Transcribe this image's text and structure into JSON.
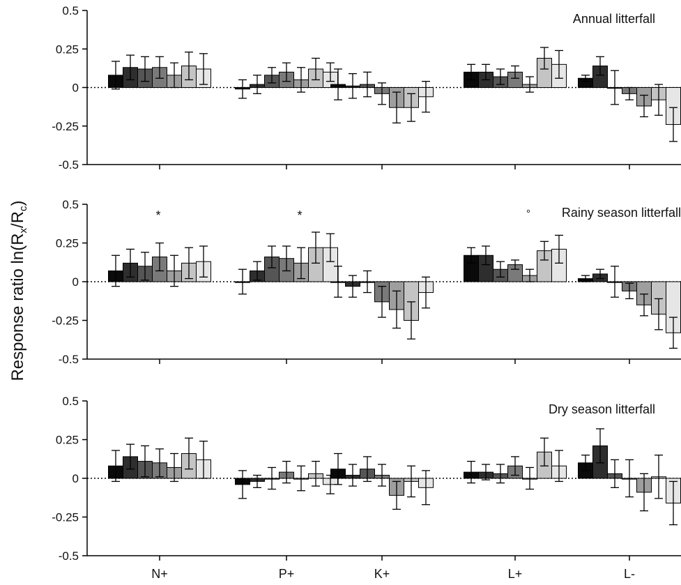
{
  "figure": {
    "ylabel": "Response ratio ln(R_x/R_c)",
    "ylabel_parts": {
      "main": "Response ratio ln(R",
      "sub1": "x",
      "mid": "/R",
      "sub2": "c",
      "end": ")"
    }
  },
  "colors": [
    "#0a0a0a",
    "#2e2e2e",
    "#555555",
    "#7a7a7a",
    "#9e9e9e",
    "#c4c4c4",
    "#e6e6e6"
  ],
  "chart_data": [
    {
      "type": "bar",
      "title": "Annual litterfall",
      "categories": [
        "N+",
        "P+",
        "K+",
        "L+",
        "L-"
      ],
      "ylim": [
        -0.5,
        0.5
      ],
      "yticks": [
        "0.5",
        "0.25",
        "0",
        "-0.25",
        "-0.5"
      ],
      "ytick_values": [
        0.5,
        0.25,
        0,
        -0.25,
        -0.5
      ],
      "bars": [
        {
          "v": [
            0.08,
            0.13,
            0.12,
            0.13,
            0.08,
            0.14,
            0.12
          ],
          "e": [
            0.09,
            0.08,
            0.08,
            0.07,
            0.08,
            0.09,
            0.1
          ]
        },
        {
          "v": [
            -0.01,
            0.02,
            0.08,
            0.1,
            0.05,
            0.12,
            0.1
          ],
          "e": [
            0.06,
            0.06,
            0.05,
            0.06,
            0.08,
            0.07,
            0.06
          ]
        },
        {
          "v": [
            0.02,
            0.01,
            0.02,
            -0.04,
            -0.13,
            -0.13,
            -0.06
          ],
          "e": [
            0.1,
            0.08,
            0.08,
            0.07,
            0.1,
            0.09,
            0.1
          ]
        },
        {
          "v": [
            0.1,
            0.1,
            0.07,
            0.1,
            0.02,
            0.19,
            0.15
          ],
          "e": [
            0.05,
            0.05,
            0.05,
            0.04,
            0.05,
            0.07,
            0.09
          ]
        },
        {
          "v": [
            0.06,
            0.14,
            0.0,
            -0.04,
            -0.12,
            -0.08,
            -0.24
          ],
          "e": [
            0.02,
            0.06,
            0.11,
            0.04,
            0.07,
            0.1,
            0.11
          ]
        }
      ],
      "annotations": []
    },
    {
      "type": "bar",
      "title": "Rainy season litterfall",
      "categories": [
        "N+",
        "P+",
        "K+",
        "L+",
        "L-"
      ],
      "ylim": [
        -0.5,
        0.5
      ],
      "yticks": [
        "0.5",
        "0.25",
        "0",
        "-0.25",
        "-0.5"
      ],
      "ytick_values": [
        0.5,
        0.25,
        0,
        -0.25,
        -0.5
      ],
      "bars": [
        {
          "v": [
            0.07,
            0.12,
            0.1,
            0.16,
            0.07,
            0.12,
            0.13
          ],
          "e": [
            0.1,
            0.09,
            0.09,
            0.09,
            0.1,
            0.1,
            0.1
          ]
        },
        {
          "v": [
            0.0,
            0.07,
            0.16,
            0.15,
            0.12,
            0.22,
            0.22
          ],
          "e": [
            0.08,
            0.06,
            0.07,
            0.08,
            0.1,
            0.1,
            0.09
          ]
        },
        {
          "v": [
            0.0,
            -0.03,
            0.0,
            -0.13,
            -0.18,
            -0.25,
            -0.07
          ],
          "e": [
            0.1,
            0.07,
            0.07,
            0.1,
            0.12,
            0.12,
            0.1
          ]
        },
        {
          "v": [
            0.17,
            0.17,
            0.08,
            0.11,
            0.04,
            0.2,
            0.21
          ],
          "e": [
            0.05,
            0.06,
            0.05,
            0.03,
            0.04,
            0.06,
            0.09
          ]
        },
        {
          "v": [
            0.02,
            0.05,
            0.0,
            -0.06,
            -0.15,
            -0.21,
            -0.33
          ],
          "e": [
            0.02,
            0.03,
            0.1,
            0.05,
            0.07,
            0.1,
            0.1
          ]
        }
      ],
      "annotations": [
        {
          "group": 0,
          "bar": 3,
          "text": "*"
        },
        {
          "group": 1,
          "bar": 4,
          "text": "*"
        },
        {
          "group": 3,
          "bar": 4,
          "text": "°"
        }
      ]
    },
    {
      "type": "bar",
      "title": "Dry season litterfall",
      "categories": [
        "N+",
        "P+",
        "K+",
        "L+",
        "L-"
      ],
      "ylim": [
        -0.5,
        0.5
      ],
      "yticks": [
        "0.5",
        "0.25",
        "0",
        "-0.25",
        "-0.5"
      ],
      "ytick_values": [
        0.5,
        0.25,
        0,
        -0.25,
        -0.5
      ],
      "bars": [
        {
          "v": [
            0.08,
            0.14,
            0.11,
            0.1,
            0.07,
            0.16,
            0.12
          ],
          "e": [
            0.1,
            0.08,
            0.1,
            0.09,
            0.09,
            0.1,
            0.12
          ]
        },
        {
          "v": [
            -0.04,
            -0.02,
            0.0,
            0.04,
            0.0,
            0.03,
            -0.04
          ],
          "e": [
            0.09,
            0.04,
            0.07,
            0.07,
            0.08,
            0.08,
            0.06
          ]
        },
        {
          "v": [
            0.06,
            0.02,
            0.06,
            0.02,
            -0.11,
            -0.02,
            -0.06
          ],
          "e": [
            0.1,
            0.07,
            0.08,
            0.07,
            0.09,
            0.1,
            0.11
          ]
        },
        {
          "v": [
            0.04,
            0.04,
            0.03,
            0.08,
            0.0,
            0.17,
            0.08
          ],
          "e": [
            0.07,
            0.05,
            0.06,
            0.06,
            0.07,
            0.09,
            0.1
          ]
        },
        {
          "v": [
            0.1,
            0.21,
            0.03,
            0.0,
            -0.09,
            0.01,
            -0.16
          ],
          "e": [
            0.05,
            0.11,
            0.09,
            0.12,
            0.12,
            0.14,
            0.14
          ]
        }
      ],
      "annotations": []
    }
  ]
}
